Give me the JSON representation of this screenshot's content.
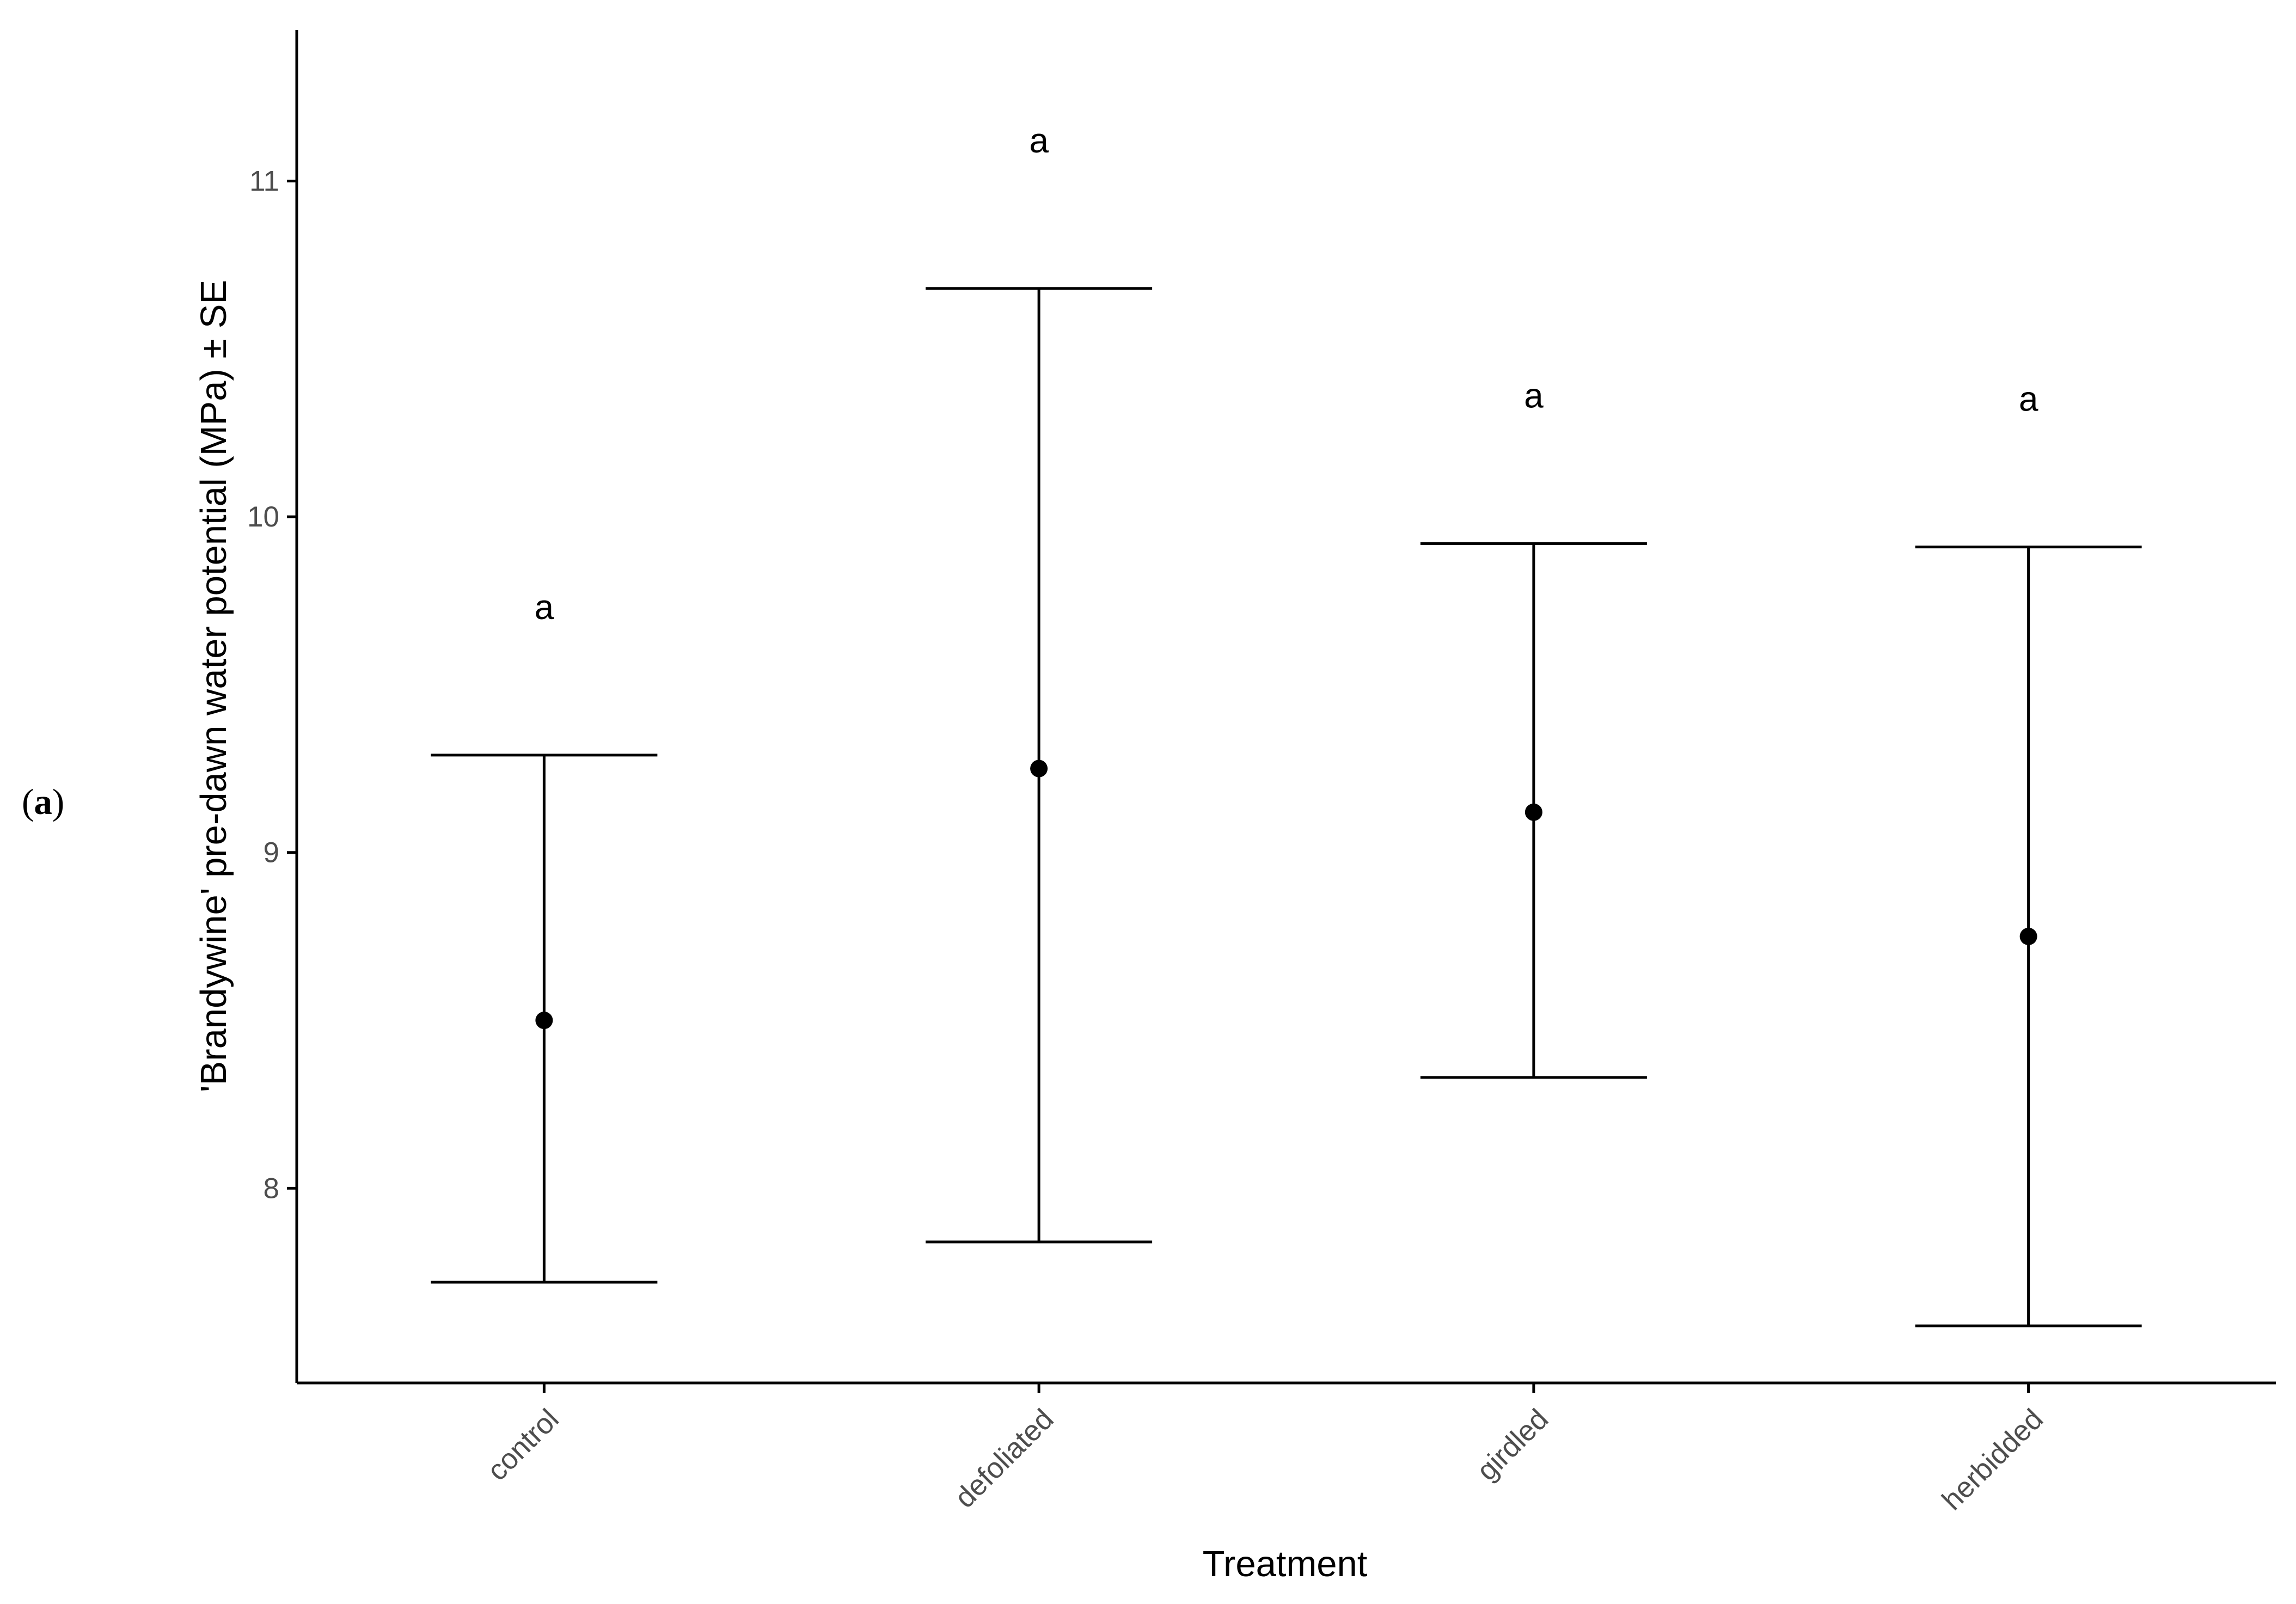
{
  "panel_label": {
    "open": "(",
    "letter": "a",
    "close": ")"
  },
  "chart_data": {
    "type": "scatter",
    "title": "",
    "xlabel": "Treatment",
    "ylabel": "'Brandywine' pre-dawn water potential (MPa) ± SE",
    "categories": [
      "control",
      "defoliated",
      "girdled",
      "herbidded"
    ],
    "series": [
      {
        "values": [
          8.5,
          9.25,
          9.12,
          8.75
        ],
        "se_lower": [
          7.72,
          7.84,
          8.33,
          7.59
        ],
        "se_upper": [
          9.29,
          10.68,
          9.92,
          9.91
        ],
        "significance": [
          "a",
          "a",
          "a",
          "a"
        ]
      }
    ],
    "ylim": [
      7.42,
      11.45
    ],
    "yticks": [
      8,
      9,
      10,
      11
    ],
    "ytick_labels": [
      "8",
      "9",
      "10",
      "11"
    ],
    "grid": false,
    "legend": "none",
    "point_color": "#000000"
  }
}
